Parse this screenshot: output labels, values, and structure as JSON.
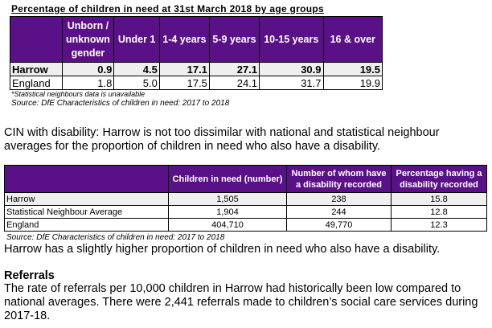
{
  "table1": {
    "title": "Percentage of children in need at 31st March 2018 by age groups",
    "headers": [
      "",
      "Unborn / unknown gender",
      "Under 1",
      "1-4 years",
      "5-9 years",
      "10-15 years",
      "16 & over"
    ],
    "rows": [
      [
        "Harrow",
        "0.9",
        "4.5",
        "17.1",
        "27.1",
        "30.9",
        "19.5"
      ],
      [
        "England",
        "1.8",
        "5.0",
        "17.5",
        "24.1",
        "31.7",
        "19.9"
      ]
    ],
    "note": "*Statistical neighbours data is unavailable",
    "source": "Source: DfE Characteristics of children in need: 2017 to 2018"
  },
  "para1": "CIN with disability: Harrow is not too dissimilar with national and statistical neighbour averages for the proportion of children in need who also have a disability.",
  "table2": {
    "headers": [
      "",
      "Children in need (number)",
      "Number of whom have a disability recorded",
      "Percentage having a disability recorded"
    ],
    "rows": [
      [
        "Harrow",
        "1,505",
        "238",
        "15.8"
      ],
      [
        "Statistical Neighbour Average",
        "1,904",
        "244",
        "12.8"
      ],
      [
        "England",
        "404,710",
        "49,770",
        "12.3"
      ]
    ],
    "source": "Source: DfE Characteristics of children in need: 2017 to 2018"
  },
  "para2": "Harrow has a slightly higher proportion of children in need who also have a disability.",
  "referrals": {
    "heading": "Referrals",
    "text": "The rate of referrals per 10,000 children in Harrow had historically been low compared to national averages. There were 2,441 referrals made to children’s social care services during 2017-18."
  },
  "colors": {
    "header_bg": "#5a1187",
    "highlight_row": "#efefef"
  }
}
